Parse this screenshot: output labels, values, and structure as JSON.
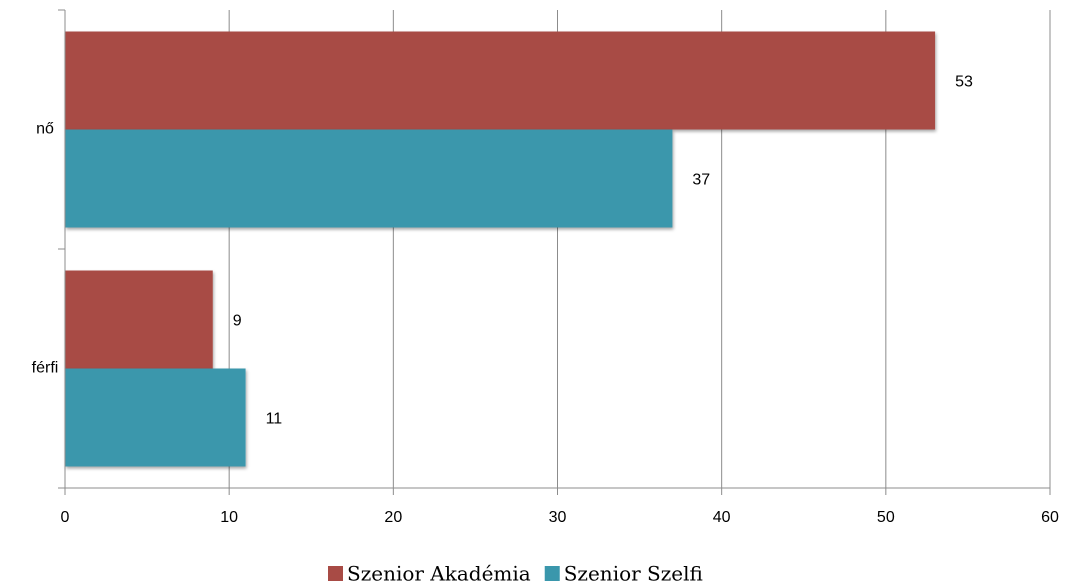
{
  "chart_data": {
    "type": "hbar",
    "categories": [
      "nő",
      "férfi"
    ],
    "series": [
      {
        "name": "Szenior Akadémia",
        "color": "#a84b45",
        "values": [
          53,
          9
        ]
      },
      {
        "name": "Szenior Szelfi",
        "color": "#3a97ac",
        "values": [
          37,
          11
        ]
      }
    ],
    "xlim": [
      0,
      60
    ],
    "xticks": [
      0,
      10,
      20,
      30,
      40,
      50,
      60
    ],
    "grid": true,
    "legend": "bottom"
  }
}
